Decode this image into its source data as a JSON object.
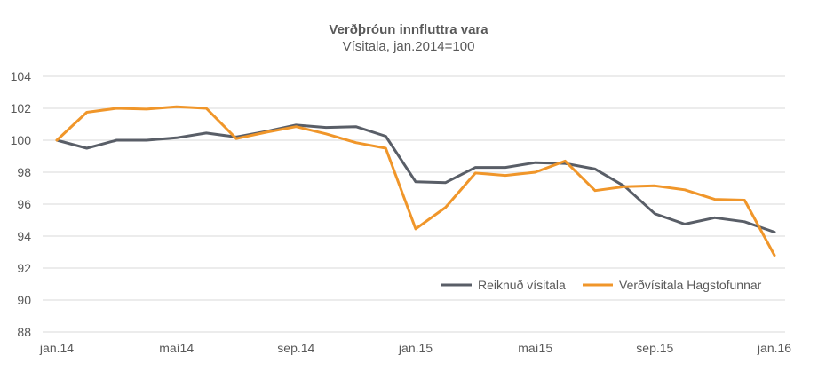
{
  "chart_data": {
    "type": "line",
    "title": "Verðþróun innfluttra vara",
    "subtitle": "Vísitala, jan.2014=100",
    "xlabel": "",
    "ylabel": "",
    "ylim": [
      88,
      104
    ],
    "yticks": [
      88,
      90,
      92,
      94,
      96,
      98,
      100,
      102,
      104
    ],
    "x_count": 25,
    "xtick_labels": [
      {
        "index": 0,
        "label": "jan.14"
      },
      {
        "index": 4,
        "label": "maí14"
      },
      {
        "index": 8,
        "label": "sep.14"
      },
      {
        "index": 12,
        "label": "jan.15"
      },
      {
        "index": 16,
        "label": "maí15"
      },
      {
        "index": 20,
        "label": "sep.15"
      },
      {
        "index": 24,
        "label": "jan.16"
      }
    ],
    "grid": true,
    "legend_position": "bottom-right",
    "series": [
      {
        "name": "Reiknuð vísitala",
        "color": "#595e67",
        "values": [
          100.0,
          99.5,
          100.0,
          100.0,
          100.15,
          100.45,
          100.2,
          100.55,
          100.95,
          100.8,
          100.85,
          100.25,
          97.4,
          97.35,
          98.3,
          98.3,
          98.6,
          98.55,
          98.2,
          97.1,
          95.4,
          94.75,
          95.15,
          94.9,
          94.25
        ]
      },
      {
        "name": "Verðvísitala Hagstofunnar",
        "color": "#f0962a",
        "values": [
          100.0,
          101.75,
          102.0,
          101.95,
          102.1,
          102.0,
          100.1,
          100.5,
          100.85,
          100.4,
          99.85,
          99.5,
          94.45,
          95.8,
          97.95,
          97.8,
          98.0,
          98.7,
          96.85,
          97.1,
          97.15,
          96.9,
          96.3,
          96.25,
          92.8
        ]
      }
    ]
  }
}
